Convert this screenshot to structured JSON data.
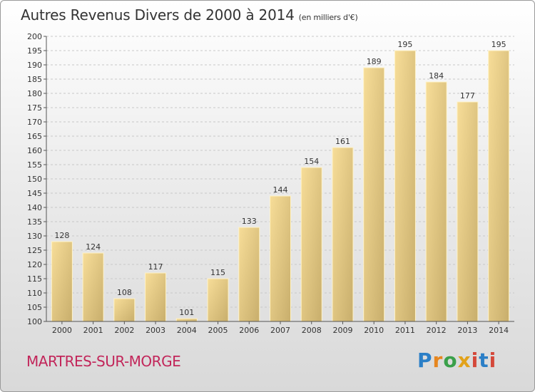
{
  "header": {
    "title": "Autres Revenus Divers de 2000 à 2014",
    "unit": "(en milliers d'€)"
  },
  "footer": {
    "commune": "MARTRES-SUR-MORGE"
  },
  "logo": {
    "text": "Proxiti",
    "colors": [
      "#2b7fc7",
      "#e6861f",
      "#3aa04a",
      "#e2a21a",
      "#d4483a",
      "#2b7fc7",
      "#d4483a"
    ]
  },
  "chart_data": {
    "type": "bar",
    "title": "Autres Revenus Divers de 2000 à 2014",
    "subtitle": "(en milliers d'€)",
    "categories": [
      "2000",
      "2001",
      "2002",
      "2003",
      "2004",
      "2005",
      "2006",
      "2007",
      "2008",
      "2009",
      "2010",
      "2011",
      "2012",
      "2013",
      "2014"
    ],
    "values": [
      128,
      124,
      108,
      117,
      101,
      115,
      133,
      144,
      154,
      161,
      189,
      195,
      184,
      177,
      195
    ],
    "ylim": [
      100,
      200
    ],
    "yticks": [
      100,
      105,
      110,
      115,
      120,
      125,
      130,
      135,
      140,
      145,
      150,
      155,
      160,
      165,
      170,
      175,
      180,
      185,
      190,
      195,
      200
    ],
    "grid": true,
    "bar_color": "#e6cf8e"
  }
}
